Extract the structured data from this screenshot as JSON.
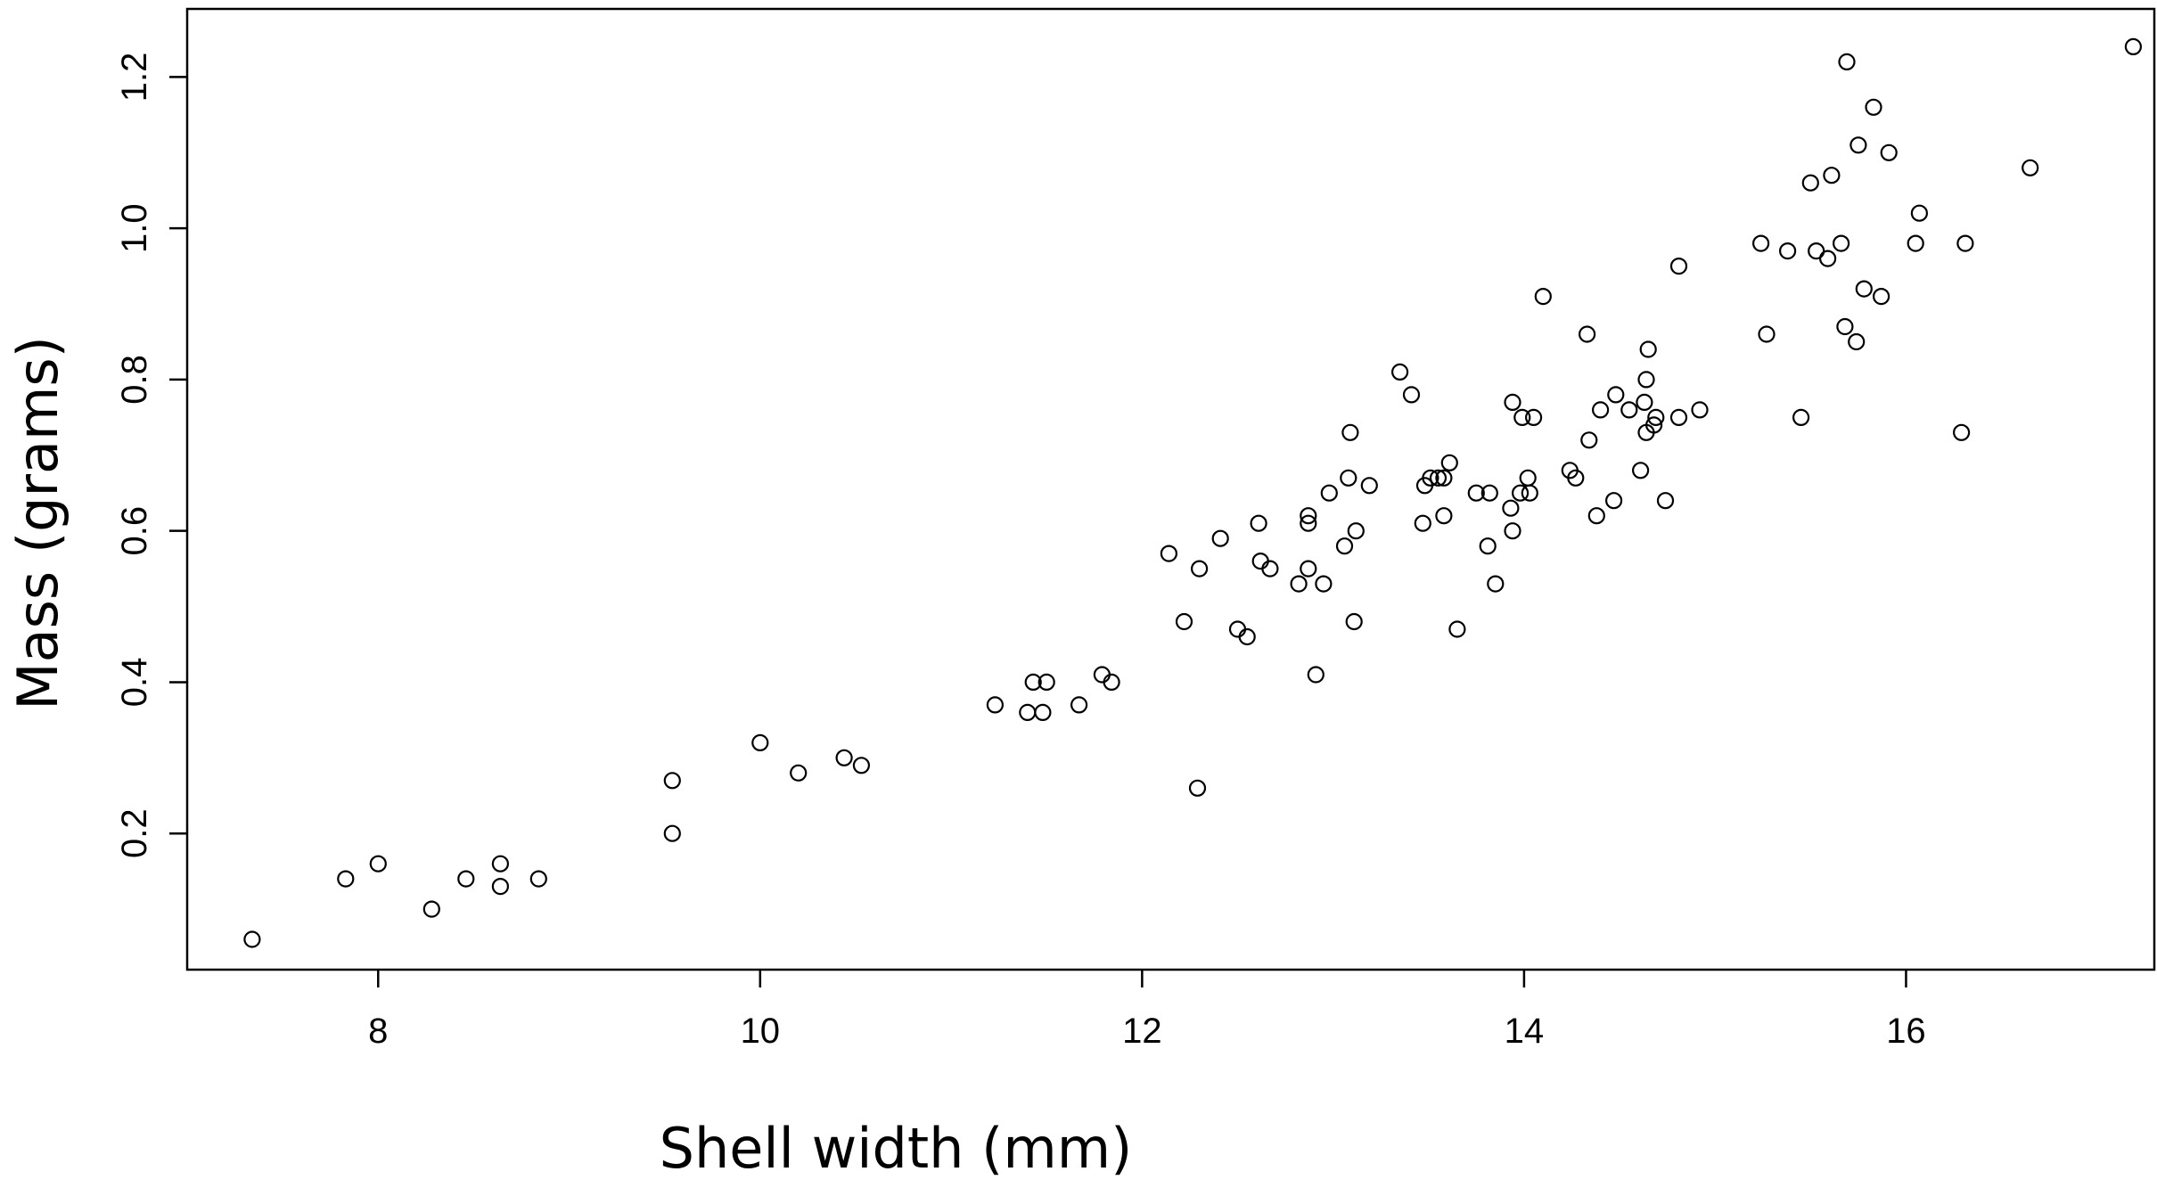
{
  "chart_data": {
    "type": "scatter",
    "title": "",
    "xlabel": "Shell width (mm)",
    "ylabel": "Mass (grams)",
    "xlim": [
      7.0,
      17.3
    ],
    "ylim": [
      0.02,
      1.29
    ],
    "xticks": [
      8,
      10,
      12,
      14,
      16
    ],
    "yticks": [
      0.2,
      0.4,
      0.6,
      0.8,
      1.0,
      1.2
    ],
    "xtick_labels": [
      "8",
      "10",
      "12",
      "14",
      "16"
    ],
    "ytick_labels": [
      "0.2",
      "0.4",
      "0.6",
      "0.8",
      "1.0",
      "1.2"
    ],
    "grid": false,
    "legend": false,
    "marker": "open-circle",
    "marker_color": "#000000",
    "points": [
      [
        7.34,
        0.06
      ],
      [
        7.83,
        0.14
      ],
      [
        8.0,
        0.16
      ],
      [
        8.28,
        0.1
      ],
      [
        8.46,
        0.14
      ],
      [
        8.64,
        0.16
      ],
      [
        8.64,
        0.13
      ],
      [
        8.84,
        0.14
      ],
      [
        9.54,
        0.27
      ],
      [
        9.54,
        0.2
      ],
      [
        10.0,
        0.32
      ],
      [
        10.2,
        0.28
      ],
      [
        10.44,
        0.3
      ],
      [
        10.53,
        0.29
      ],
      [
        11.23,
        0.37
      ],
      [
        11.4,
        0.36
      ],
      [
        11.43,
        0.4
      ],
      [
        11.48,
        0.36
      ],
      [
        11.5,
        0.4
      ],
      [
        11.67,
        0.37
      ],
      [
        11.79,
        0.41
      ],
      [
        11.84,
        0.4
      ],
      [
        12.14,
        0.57
      ],
      [
        12.22,
        0.48
      ],
      [
        12.29,
        0.26
      ],
      [
        12.3,
        0.55
      ],
      [
        12.41,
        0.59
      ],
      [
        12.5,
        0.47
      ],
      [
        12.55,
        0.46
      ],
      [
        12.61,
        0.61
      ],
      [
        12.62,
        0.56
      ],
      [
        12.67,
        0.55
      ],
      [
        12.82,
        0.53
      ],
      [
        12.87,
        0.55
      ],
      [
        12.87,
        0.61
      ],
      [
        12.87,
        0.62
      ],
      [
        12.91,
        0.41
      ],
      [
        12.95,
        0.53
      ],
      [
        12.98,
        0.65
      ],
      [
        13.06,
        0.58
      ],
      [
        13.08,
        0.67
      ],
      [
        13.09,
        0.73
      ],
      [
        13.11,
        0.48
      ],
      [
        13.12,
        0.6
      ],
      [
        13.19,
        0.66
      ],
      [
        13.35,
        0.81
      ],
      [
        13.41,
        0.78
      ],
      [
        13.47,
        0.61
      ],
      [
        13.48,
        0.66
      ],
      [
        13.51,
        0.67
      ],
      [
        13.55,
        0.67
      ],
      [
        13.58,
        0.67
      ],
      [
        13.58,
        0.62
      ],
      [
        13.61,
        0.69
      ],
      [
        13.65,
        0.47
      ],
      [
        13.75,
        0.65
      ],
      [
        13.81,
        0.58
      ],
      [
        13.82,
        0.65
      ],
      [
        13.85,
        0.53
      ],
      [
        13.93,
        0.63
      ],
      [
        13.94,
        0.77
      ],
      [
        13.94,
        0.6
      ],
      [
        13.98,
        0.65
      ],
      [
        13.99,
        0.75
      ],
      [
        14.02,
        0.67
      ],
      [
        14.03,
        0.65
      ],
      [
        14.05,
        0.75
      ],
      [
        14.1,
        0.91
      ],
      [
        14.24,
        0.68
      ],
      [
        14.27,
        0.67
      ],
      [
        14.33,
        0.86
      ],
      [
        14.34,
        0.72
      ],
      [
        14.38,
        0.62
      ],
      [
        14.4,
        0.76
      ],
      [
        14.47,
        0.64
      ],
      [
        14.48,
        0.78
      ],
      [
        14.55,
        0.76
      ],
      [
        14.61,
        0.68
      ],
      [
        14.63,
        0.77
      ],
      [
        14.64,
        0.8
      ],
      [
        14.64,
        0.73
      ],
      [
        14.65,
        0.84
      ],
      [
        14.68,
        0.74
      ],
      [
        14.69,
        0.75
      ],
      [
        14.74,
        0.64
      ],
      [
        14.81,
        0.75
      ],
      [
        14.81,
        0.95
      ],
      [
        14.92,
        0.76
      ],
      [
        15.24,
        0.98
      ],
      [
        15.27,
        0.86
      ],
      [
        15.38,
        0.97
      ],
      [
        15.45,
        0.75
      ],
      [
        15.5,
        1.06
      ],
      [
        15.53,
        0.97
      ],
      [
        15.59,
        0.96
      ],
      [
        15.61,
        1.07
      ],
      [
        15.66,
        0.98
      ],
      [
        15.68,
        0.87
      ],
      [
        15.69,
        1.22
      ],
      [
        15.74,
        0.85
      ],
      [
        15.75,
        1.11
      ],
      [
        15.78,
        0.92
      ],
      [
        15.83,
        1.16
      ],
      [
        15.87,
        0.91
      ],
      [
        15.91,
        1.1
      ],
      [
        16.05,
        0.98
      ],
      [
        16.07,
        1.02
      ],
      [
        16.29,
        0.73
      ],
      [
        16.31,
        0.98
      ],
      [
        16.65,
        1.08
      ],
      [
        17.19,
        1.24
      ]
    ]
  }
}
